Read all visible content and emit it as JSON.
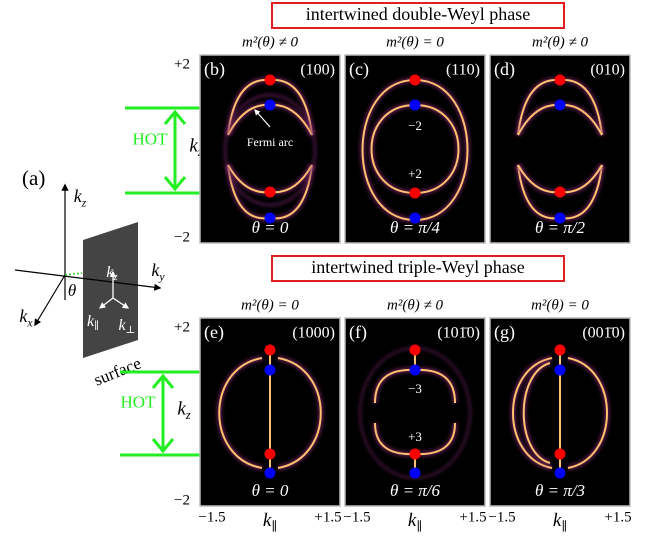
{
  "panel_a": {
    "label": "(a)",
    "kz": {
      "symbol": "k",
      "sub": "z"
    },
    "ky": {
      "symbol": "k",
      "sub": "y"
    },
    "kx": {
      "symbol": "k",
      "sub": "x"
    },
    "theta": "θ",
    "surface_kz": {
      "symbol": "k",
      "sub": "z"
    },
    "surface_kpar": {
      "symbol": "k",
      "sub": "∥"
    },
    "surface_kperp": {
      "symbol": "k",
      "sub": "⊥"
    },
    "surface": "surface"
  },
  "rows": [
    {
      "title": "intertwined double-Weyl phase",
      "y_top": "+2",
      "y_bottom": "−2",
      "y_axis": {
        "symbol": "k",
        "sub": "z"
      },
      "hot": "HOT",
      "panels": [
        {
          "label": "(b)",
          "direction": "(100)",
          "condition": "m²(θ) ≠ 0",
          "angle": "θ = 0",
          "annotations": [
            "Fermi arc"
          ]
        },
        {
          "label": "(c)",
          "direction": "(110)",
          "condition": "m²(θ) = 0",
          "angle": "θ = π/4",
          "annotations": [
            "−2",
            "+2"
          ]
        },
        {
          "label": "(d)",
          "direction": "(010)",
          "condition": "m²(θ) ≠ 0",
          "angle": "θ = π/2",
          "annotations": []
        }
      ]
    },
    {
      "title": "intertwined triple-Weyl phase",
      "y_top": "+2",
      "y_bottom": "−2",
      "y_axis": {
        "symbol": "k",
        "sub": "z"
      },
      "hot": "HOT",
      "panels": [
        {
          "label": "(e)",
          "direction": "(1000)",
          "condition": "m²(θ) = 0",
          "angle": "θ = 0",
          "annotations": [],
          "x_left": "−1.5",
          "x_right": "+1.5",
          "x_axis": {
            "symbol": "k",
            "sub": "∥"
          }
        },
        {
          "label": "(f)",
          "direction": "(101̄0)",
          "condition": "m²(θ) ≠ 0",
          "angle": "θ = π/6",
          "annotations": [
            "−3",
            "+3"
          ],
          "x_left": "−1.5",
          "x_right": "+1.5",
          "x_axis": {
            "symbol": "k",
            "sub": "∥"
          }
        },
        {
          "label": "(g)",
          "direction": "(001̄0)",
          "condition": "m²(θ) = 0",
          "angle": "θ = π/3",
          "annotations": [],
          "x_left": "−1.5",
          "x_right": "+1.5",
          "x_axis": {
            "symbol": "k",
            "sub": "∥"
          }
        }
      ]
    }
  ]
}
